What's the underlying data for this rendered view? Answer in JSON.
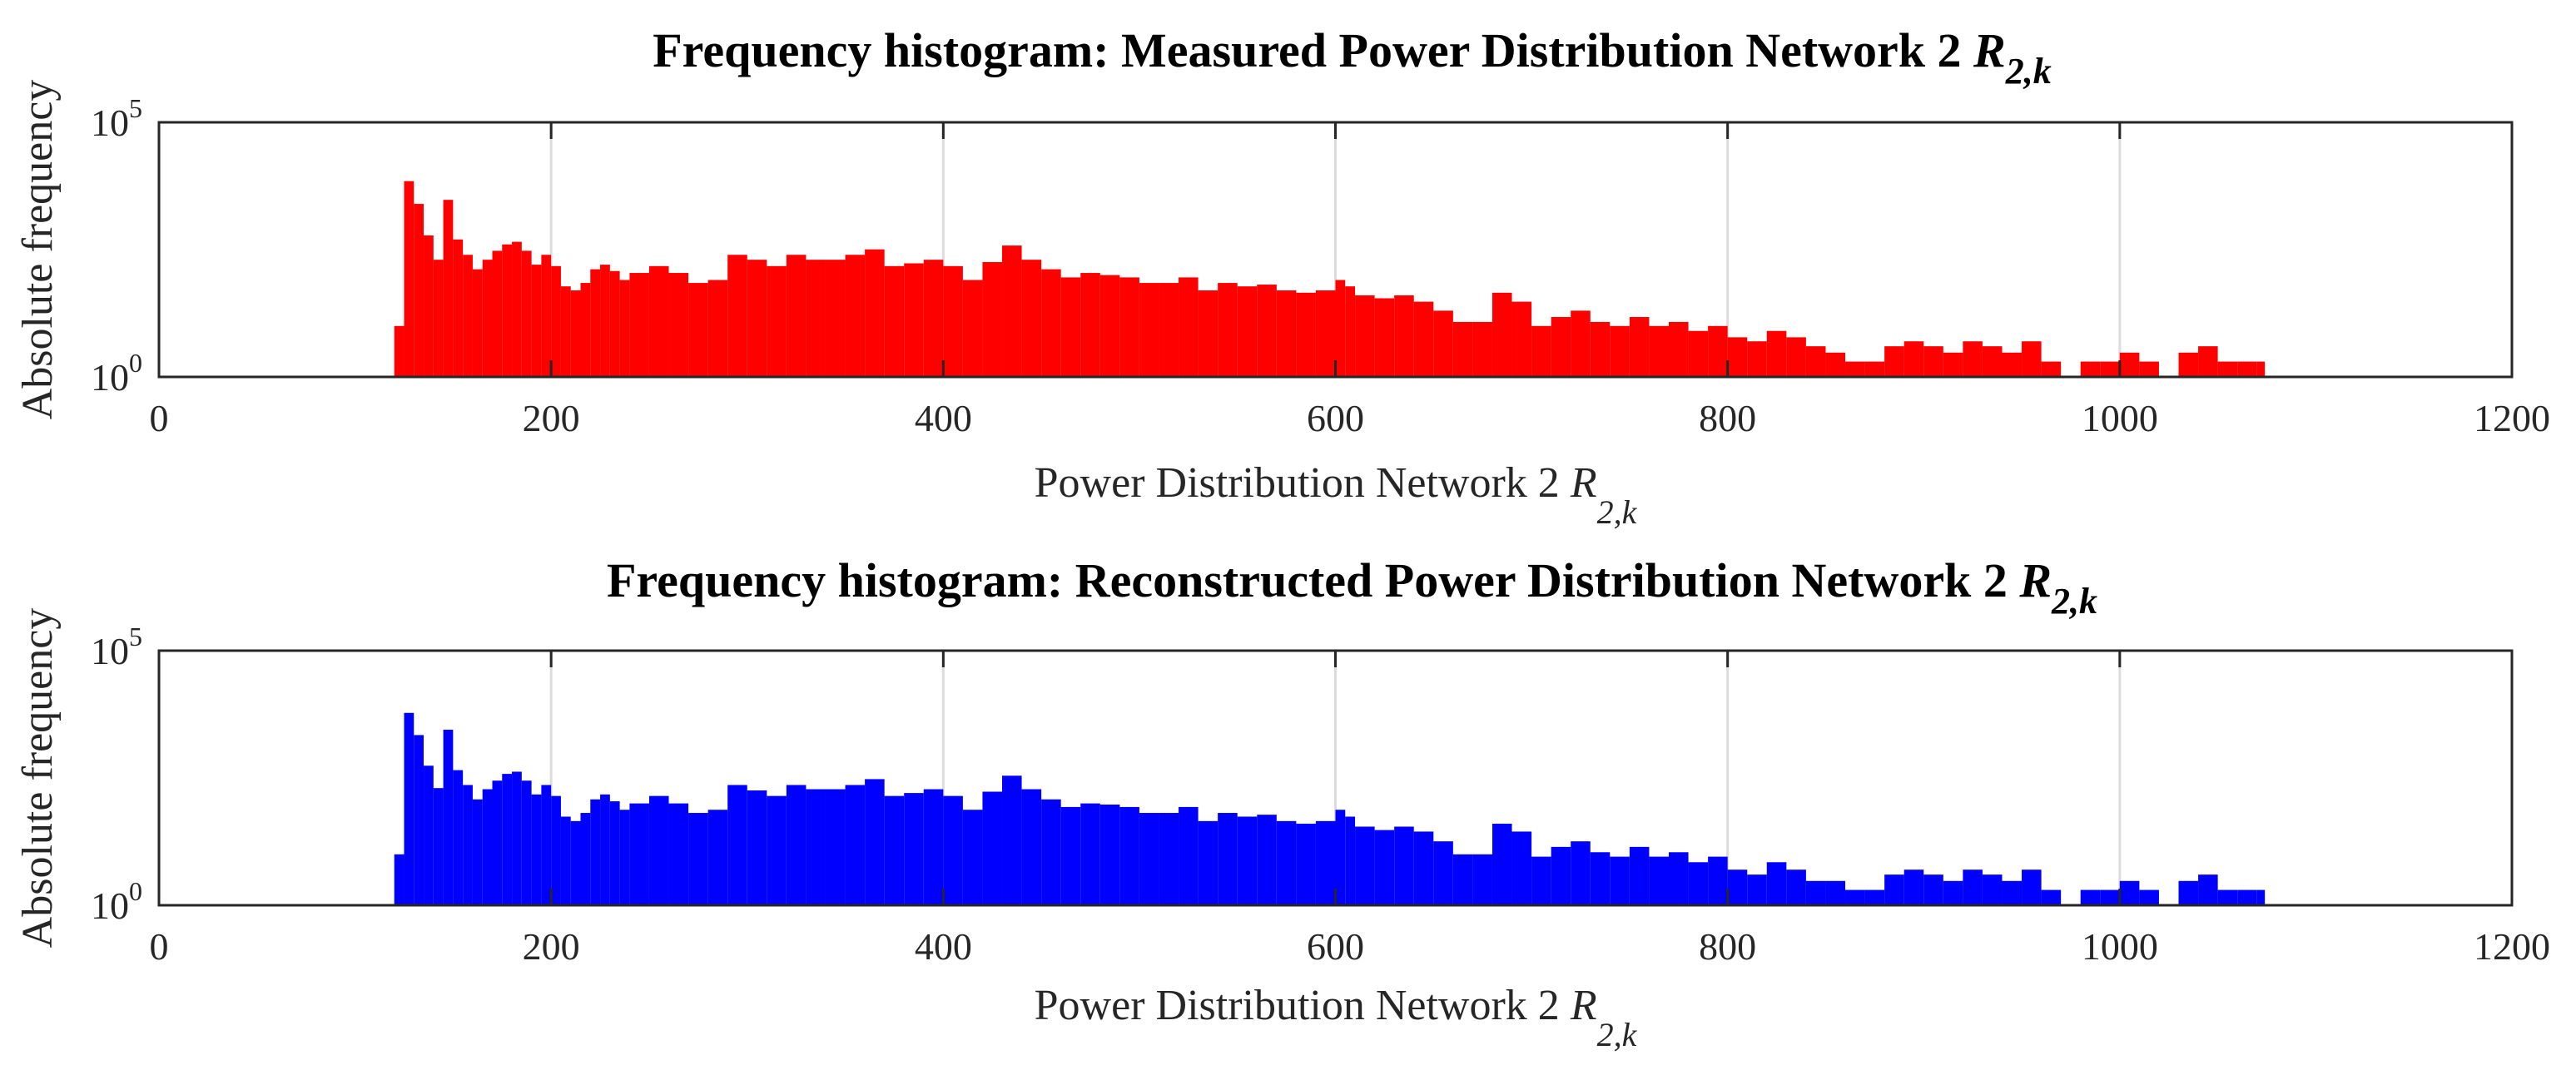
{
  "chart_data": [
    {
      "type": "bar",
      "title": "Frequency histogram: Measured Power Distribution Network 2",
      "title_symbol": "R",
      "title_subscript": "2,k",
      "xlabel": "Power Distribution Network 2",
      "xlabel_symbol": "R",
      "xlabel_subscript": "2,k",
      "ylabel": "Absolute frequency",
      "xlim": [
        0,
        1200
      ],
      "ylim": [
        1,
        100000
      ],
      "yscale": "log",
      "xticks": [
        "0",
        "200",
        "400",
        "600",
        "800",
        "1000",
        "1200"
      ],
      "yticks": [
        {
          "base": "10",
          "exp": "0"
        },
        {
          "base": "10",
          "exp": "5"
        }
      ],
      "grid": "vertical",
      "color": "#ff0000",
      "bin_width": 2,
      "series": [
        {
          "x": [
            120,
            125,
            130,
            135,
            140,
            145,
            150,
            155,
            160,
            165,
            170,
            175,
            180,
            185,
            190,
            195,
            200,
            205,
            210,
            215,
            220,
            225,
            230,
            235,
            240,
            250,
            260,
            270,
            280,
            290,
            300,
            310,
            320,
            330,
            340,
            350,
            360,
            370,
            380,
            390,
            400,
            410,
            420,
            430,
            440,
            450,
            460,
            470,
            480,
            490,
            500,
            510,
            520,
            530,
            540,
            550,
            560,
            570,
            580,
            590,
            600,
            605,
            610,
            620,
            630,
            640,
            650,
            660,
            670,
            680,
            690,
            700,
            710,
            720,
            730,
            740,
            750,
            760,
            770,
            780,
            790,
            800,
            810,
            820,
            830,
            840,
            850,
            860,
            870,
            880,
            890,
            900,
            910,
            920,
            930,
            940,
            950,
            960,
            970,
            980,
            990,
            1000,
            1010,
            1020,
            1030,
            1040,
            1050,
            1060,
            1070
          ],
          "y": [
            10,
            7000,
            2500,
            600,
            200,
            3000,
            500,
            250,
            130,
            200,
            300,
            400,
            450,
            300,
            160,
            250,
            150,
            60,
            50,
            70,
            130,
            160,
            120,
            80,
            110,
            150,
            110,
            70,
            80,
            250,
            200,
            150,
            250,
            200,
            200,
            250,
            320,
            150,
            170,
            200,
            150,
            80,
            180,
            380,
            200,
            130,
            90,
            110,
            100,
            90,
            70,
            70,
            90,
            50,
            70,
            60,
            65,
            50,
            45,
            50,
            80,
            60,
            40,
            35,
            40,
            30,
            20,
            12,
            12,
            45,
            30,
            10,
            15,
            20,
            12,
            10,
            15,
            10,
            12,
            8,
            10,
            6,
            5,
            8,
            6,
            4,
            3,
            2,
            2,
            4,
            5,
            4,
            3,
            5,
            4,
            3,
            5,
            2,
            1,
            2,
            2,
            3,
            2,
            1,
            3,
            4,
            2,
            2,
            2
          ]
        }
      ]
    },
    {
      "type": "bar",
      "title": "Frequency histogram: Reconstructed Power Distribution Network 2",
      "title_symbol": "R",
      "title_subscript": "2,k",
      "xlabel": "Power Distribution Network 2",
      "xlabel_symbol": "R",
      "xlabel_subscript": "2,k",
      "ylabel": "Absolute frequency",
      "xlim": [
        0,
        1200
      ],
      "ylim": [
        1,
        100000
      ],
      "yscale": "log",
      "xticks": [
        "0",
        "200",
        "400",
        "600",
        "800",
        "1000",
        "1200"
      ],
      "yticks": [
        {
          "base": "10",
          "exp": "0"
        },
        {
          "base": "10",
          "exp": "5"
        }
      ],
      "grid": "vertical",
      "color": "#0000ff",
      "bin_width": 2,
      "series": [
        {
          "x": [
            120,
            125,
            130,
            135,
            140,
            145,
            150,
            155,
            160,
            165,
            170,
            175,
            180,
            185,
            190,
            195,
            200,
            205,
            210,
            215,
            220,
            225,
            230,
            235,
            240,
            250,
            260,
            270,
            280,
            290,
            300,
            310,
            320,
            330,
            340,
            350,
            360,
            370,
            380,
            390,
            400,
            410,
            420,
            430,
            440,
            450,
            460,
            470,
            480,
            490,
            500,
            510,
            520,
            530,
            540,
            550,
            560,
            570,
            580,
            590,
            600,
            605,
            610,
            620,
            630,
            640,
            650,
            660,
            670,
            680,
            690,
            700,
            710,
            720,
            730,
            740,
            750,
            760,
            770,
            780,
            790,
            800,
            810,
            820,
            830,
            840,
            850,
            860,
            870,
            880,
            890,
            900,
            910,
            920,
            930,
            940,
            950,
            960,
            970,
            980,
            990,
            1000,
            1010,
            1020,
            1030,
            1040,
            1050,
            1060,
            1070
          ],
          "y": [
            10,
            6000,
            2200,
            550,
            200,
            2800,
            450,
            230,
            120,
            190,
            280,
            380,
            420,
            280,
            150,
            230,
            140,
            55,
            45,
            65,
            120,
            150,
            110,
            75,
            100,
            140,
            100,
            65,
            75,
            230,
            180,
            140,
            230,
            190,
            190,
            230,
            300,
            140,
            160,
            190,
            140,
            75,
            170,
            350,
            190,
            120,
            85,
            100,
            95,
            85,
            65,
            65,
            85,
            45,
            65,
            55,
            60,
            45,
            40,
            45,
            75,
            55,
            35,
            30,
            35,
            28,
            18,
            10,
            10,
            40,
            28,
            9,
            14,
            18,
            11,
            9,
            14,
            9,
            11,
            7,
            9,
            5,
            4,
            7,
            5,
            3,
            3,
            2,
            2,
            4,
            5,
            4,
            3,
            5,
            4,
            3,
            5,
            2,
            1,
            2,
            2,
            3,
            2,
            1,
            3,
            4,
            2,
            2,
            2
          ]
        }
      ]
    }
  ]
}
